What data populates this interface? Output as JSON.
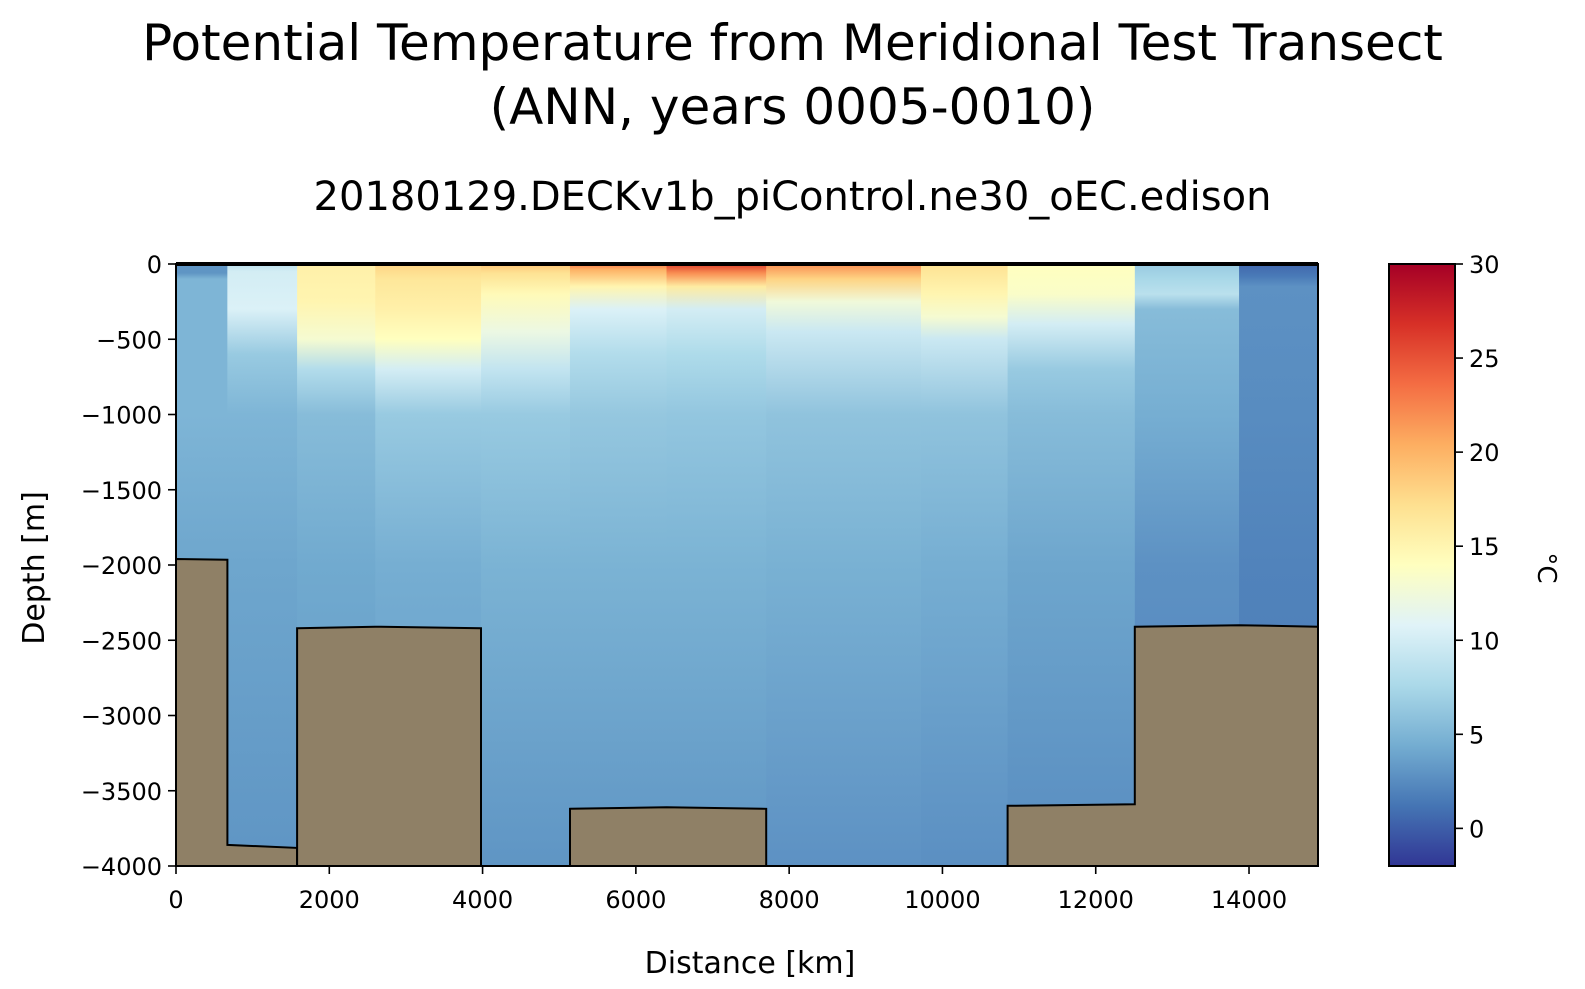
{
  "figure": {
    "title_line1": "Potential Temperature from Meridional Test Transect",
    "title_line2": "(ANN, years 0005-0010)",
    "subtitle": "20180129.DECKv1b_piControl.ne30_oEC.edison"
  },
  "chart_data": {
    "type": "heatmap",
    "title": "Potential Temperature from Meridional Test Transect (ANN, years 0005-0010)",
    "subtitle": "20180129.DECKv1b_piControl.ne30_oEC.edison",
    "xlabel": "Distance [km]",
    "ylabel": "Depth [m]",
    "xlim": [
      0,
      14900
    ],
    "ylim": [
      -4000,
      0
    ],
    "xticks": [
      0,
      2000,
      4000,
      6000,
      8000,
      10000,
      12000,
      14000
    ],
    "xtick_labels": [
      "0",
      "2000",
      "4000",
      "6000",
      "8000",
      "10000",
      "12000",
      "14000"
    ],
    "yticks": [
      0,
      -500,
      -1000,
      -1500,
      -2000,
      -2500,
      -3000,
      -3500,
      -4000
    ],
    "ytick_labels": [
      "0",
      "−500",
      "−1000",
      "−1500",
      "−2000",
      "−2500",
      "−3000",
      "−3500",
      "−4000"
    ],
    "colorbar": {
      "label": "°C",
      "vmin": -2,
      "vmax": 30,
      "ticks": [
        0,
        5,
        10,
        15,
        20,
        25,
        30
      ],
      "tick_labels": [
        "0",
        "5",
        "10",
        "15",
        "20",
        "25",
        "30"
      ],
      "colormap": "RdYlBu_r",
      "colors": [
        "#313695",
        "#4575b4",
        "#74add1",
        "#abd9e9",
        "#e0f3f8",
        "#ffffbf",
        "#fee090",
        "#fdae61",
        "#f46d43",
        "#d73027",
        "#a50026"
      ]
    },
    "columns": [
      {
        "x0": 0,
        "x1": 670,
        "profile": [
          [
            0,
            3.0
          ],
          [
            -60,
            3.0
          ],
          [
            -100,
            5.0
          ],
          [
            -1000,
            5.0
          ],
          [
            -2000,
            4.0
          ],
          [
            -4000,
            3.0
          ]
        ]
      },
      {
        "x0": 670,
        "x1": 1580,
        "profile": [
          [
            0,
            8.5
          ],
          [
            -50,
            10.0
          ],
          [
            -300,
            10.5
          ],
          [
            -600,
            6.5
          ],
          [
            -1000,
            5.0
          ],
          [
            -2000,
            4.0
          ],
          [
            -4000,
            3.0
          ]
        ]
      },
      {
        "x0": 1580,
        "x1": 2600,
        "profile": [
          [
            0,
            15.5
          ],
          [
            -250,
            15.0
          ],
          [
            -500,
            13.0
          ],
          [
            -700,
            8.0
          ],
          [
            -1000,
            5.5
          ],
          [
            -2000,
            4.2
          ],
          [
            -4000,
            3.0
          ]
        ]
      },
      {
        "x0": 2600,
        "x1": 3980,
        "profile": [
          [
            0,
            18.0
          ],
          [
            -100,
            16.5
          ],
          [
            -300,
            15.5
          ],
          [
            -500,
            14.0
          ],
          [
            -700,
            10.0
          ],
          [
            -1000,
            6.5
          ],
          [
            -2000,
            4.5
          ],
          [
            -4000,
            3.0
          ]
        ]
      },
      {
        "x0": 3980,
        "x1": 5140,
        "profile": [
          [
            0,
            19.0
          ],
          [
            -60,
            17.0
          ],
          [
            -200,
            14.5
          ],
          [
            -450,
            12.0
          ],
          [
            -700,
            9.0
          ],
          [
            -1000,
            6.5
          ],
          [
            -2000,
            4.8
          ],
          [
            -4000,
            3.0
          ]
        ]
      },
      {
        "x0": 5140,
        "x1": 6400,
        "profile": [
          [
            0,
            23.0
          ],
          [
            -40,
            20.0
          ],
          [
            -150,
            15.0
          ],
          [
            -300,
            10.5
          ],
          [
            -600,
            8.0
          ],
          [
            -1000,
            6.3
          ],
          [
            -2000,
            4.8
          ],
          [
            -4000,
            3.0
          ]
        ]
      },
      {
        "x0": 6400,
        "x1": 7700,
        "profile": [
          [
            0,
            26.0
          ],
          [
            -60,
            22.0
          ],
          [
            -150,
            16.0
          ],
          [
            -300,
            10.0
          ],
          [
            -600,
            7.8
          ],
          [
            -1000,
            6.2
          ],
          [
            -2000,
            4.8
          ],
          [
            -4000,
            3.0
          ]
        ]
      },
      {
        "x0": 7700,
        "x1": 9720,
        "profile": [
          [
            0,
            22.0
          ],
          [
            -100,
            18.0
          ],
          [
            -250,
            12.5
          ],
          [
            -450,
            9.5
          ],
          [
            -1000,
            6.0
          ],
          [
            -2000,
            4.7
          ],
          [
            -4000,
            2.8
          ]
        ]
      },
      {
        "x0": 9720,
        "x1": 10850,
        "profile": [
          [
            0,
            17.0
          ],
          [
            -200,
            15.0
          ],
          [
            -350,
            13.0
          ],
          [
            -500,
            9.5
          ],
          [
            -1000,
            6.0
          ],
          [
            -2000,
            4.5
          ],
          [
            -4000,
            2.7
          ]
        ]
      },
      {
        "x0": 10850,
        "x1": 12510,
        "profile": [
          [
            0,
            14.0
          ],
          [
            -200,
            13.5
          ],
          [
            -400,
            10.0
          ],
          [
            -700,
            6.5
          ],
          [
            -1000,
            5.5
          ],
          [
            -2000,
            4.0
          ],
          [
            -4000,
            2.5
          ]
        ]
      },
      {
        "x0": 12510,
        "x1": 13870,
        "profile": [
          [
            0,
            6.5
          ],
          [
            -100,
            7.5
          ],
          [
            -200,
            8.5
          ],
          [
            -300,
            5.5
          ],
          [
            -1000,
            4.5
          ],
          [
            -2000,
            2.8
          ],
          [
            -4000,
            2.0
          ]
        ]
      },
      {
        "x0": 13870,
        "x1": 14900,
        "profile": [
          [
            0,
            0.5
          ],
          [
            -80,
            1.5
          ],
          [
            -150,
            2.8
          ],
          [
            -1000,
            2.5
          ],
          [
            -2000,
            2.0
          ],
          [
            -4000,
            1.5
          ]
        ]
      }
    ],
    "bathymetry": [
      [
        [
          0,
          -1960
        ],
        [
          670,
          -1965
        ],
        [
          670,
          -3860
        ],
        [
          1580,
          -3880
        ],
        [
          1580,
          -4000
        ],
        [
          0,
          -4000
        ]
      ],
      [
        [
          1580,
          -2420
        ],
        [
          2600,
          -2410
        ],
        [
          3980,
          -2420
        ],
        [
          3980,
          -4000
        ],
        [
          1580,
          -4000
        ]
      ],
      [
        [
          5140,
          -3620
        ],
        [
          6400,
          -3610
        ],
        [
          7700,
          -3620
        ],
        [
          7700,
          -4000
        ],
        [
          5140,
          -4000
        ]
      ],
      [
        [
          10850,
          -3600
        ],
        [
          12510,
          -3590
        ],
        [
          12510,
          -2410
        ],
        [
          13870,
          -2400
        ],
        [
          14900,
          -2410
        ],
        [
          14900,
          -4000
        ],
        [
          10850,
          -4000
        ]
      ]
    ],
    "bathymetry_color": "#8f8066"
  }
}
